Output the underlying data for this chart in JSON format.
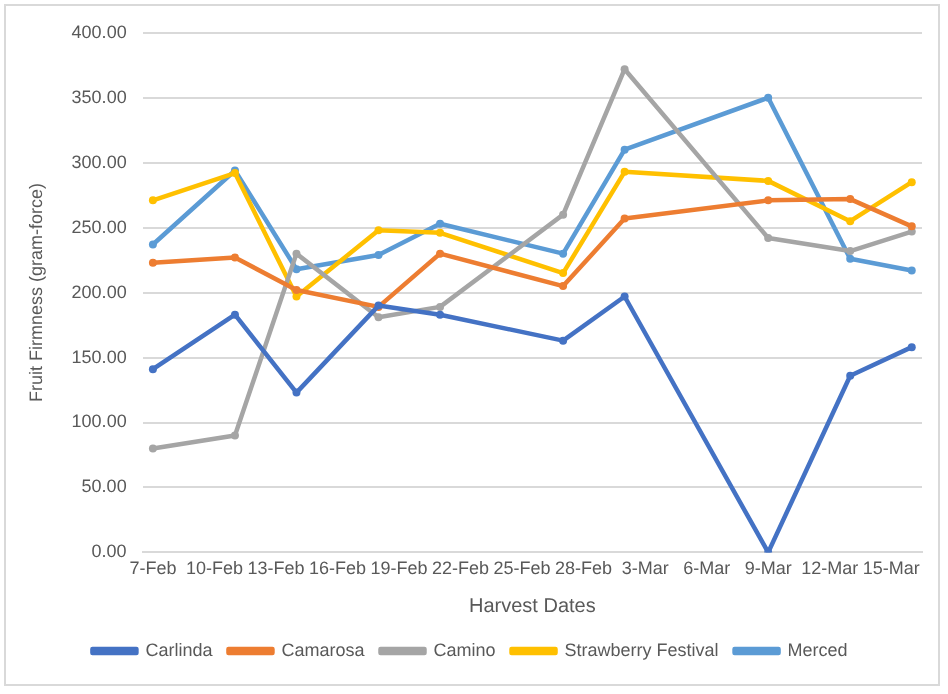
{
  "chart_data": {
    "type": "line",
    "xlabel": "Harvest Dates",
    "ylabel": "Fruit Firmness (gram-force)",
    "x": [
      "--02-07",
      "--02-11",
      "--02-14",
      "--02-18",
      "--02-21",
      "--02-27",
      "--03-02",
      "--03-09",
      "--03-13",
      "--03-16"
    ],
    "series": [
      {
        "name": "Carlinda",
        "color": "#4472c4",
        "values": [
          141,
          183,
          123,
          190,
          183,
          163,
          197,
          0,
          136,
          158
        ]
      },
      {
        "name": "Camarosa",
        "color": "#ed7d31",
        "values": [
          223,
          227,
          202,
          189,
          230,
          205,
          257,
          271,
          272,
          251
        ]
      },
      {
        "name": "Camino",
        "color": "#a5a5a5",
        "values": [
          80,
          90,
          230,
          181,
          189,
          260,
          372,
          242,
          232,
          247
        ]
      },
      {
        "name": "Strawberry Festival",
        "color": "#ffc000",
        "values": [
          271,
          292,
          197,
          248,
          246,
          215,
          293,
          286,
          255,
          285
        ]
      },
      {
        "name": "Merced",
        "color": "#5b9bd5",
        "values": [
          237,
          294,
          218,
          229,
          253,
          230,
          310,
          350,
          226,
          217
        ]
      }
    ],
    "xlim": [
      "--02-06T12:00",
      "--03-16T12:00"
    ],
    "xticks": [
      {
        "value": "--02-07",
        "label": "7-Feb"
      },
      {
        "value": "--02-10",
        "label": "10-Feb"
      },
      {
        "value": "--02-13",
        "label": "13-Feb"
      },
      {
        "value": "--02-16",
        "label": "16-Feb"
      },
      {
        "value": "--02-19",
        "label": "19-Feb"
      },
      {
        "value": "--02-22",
        "label": "22-Feb"
      },
      {
        "value": "--02-25",
        "label": "25-Feb"
      },
      {
        "value": "--02-28",
        "label": "28-Feb"
      },
      {
        "value": "--03-03",
        "label": "3-Mar"
      },
      {
        "value": "--03-06",
        "label": "6-Mar"
      },
      {
        "value": "--03-09",
        "label": "9-Mar"
      },
      {
        "value": "--03-12",
        "label": "12-Mar"
      },
      {
        "value": "--03-15",
        "label": "15-Mar"
      }
    ],
    "ylim": [
      0,
      400
    ],
    "yticks": [
      {
        "value": 0,
        "label": "0.00"
      },
      {
        "value": 50,
        "label": "50.00"
      },
      {
        "value": 100,
        "label": "100.00"
      },
      {
        "value": 150,
        "label": "150.00"
      },
      {
        "value": 200,
        "label": "200.00"
      },
      {
        "value": 250,
        "label": "250.00"
      },
      {
        "value": 300,
        "label": "300.00"
      },
      {
        "value": 350,
        "label": "350.00"
      },
      {
        "value": 400,
        "label": "400.00"
      }
    ],
    "grid": "y",
    "legend": "bottom",
    "marker": "circle",
    "line_style": "solid"
  }
}
